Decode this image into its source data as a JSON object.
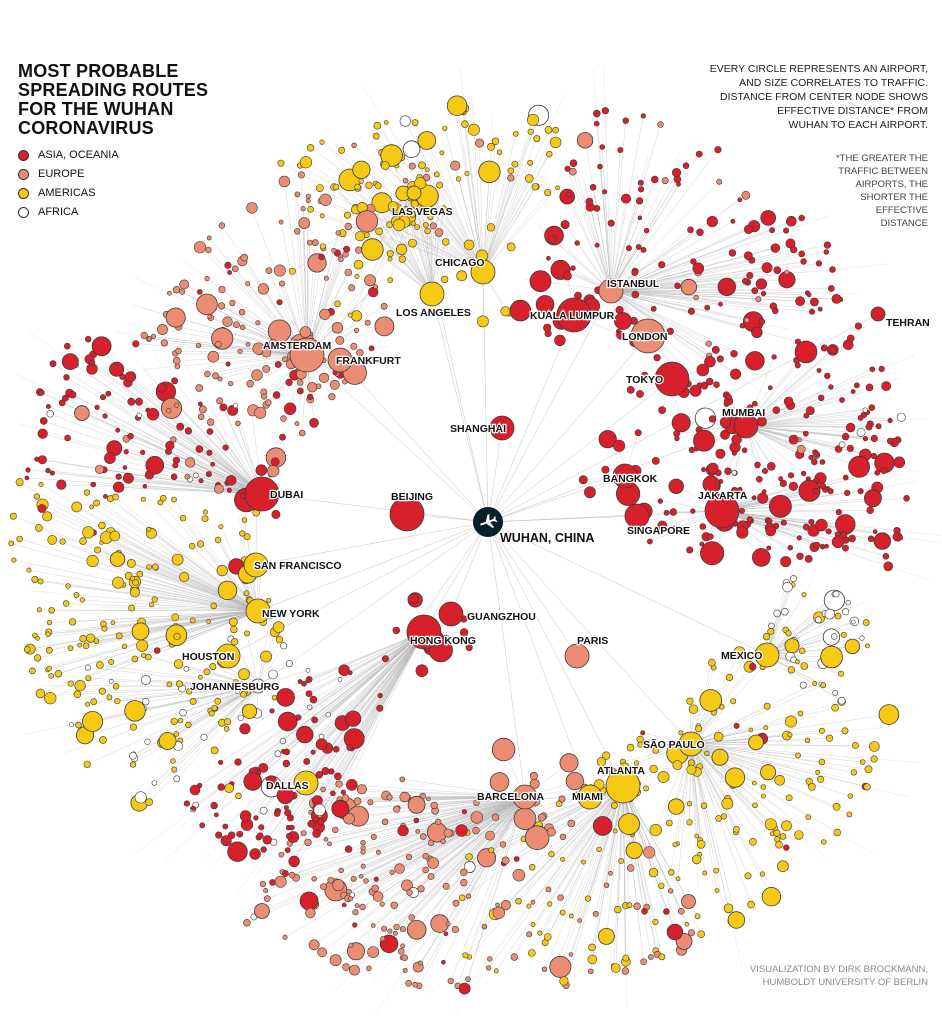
{
  "title": {
    "lines": [
      "MOST PROBABLE",
      "SPREADING ROUTES",
      "FOR THE WUHAN",
      "CORONAVIRUS"
    ]
  },
  "legend": [
    {
      "label": "ASIA, OCEANIA",
      "color": "#d7202b"
    },
    {
      "label": "EUROPE",
      "color": "#ec8c72"
    },
    {
      "label": "AMERICAS",
      "color": "#f6c915"
    },
    {
      "label": "AFRICA",
      "color": "#ffffff"
    }
  ],
  "description": {
    "lines": [
      "EVERY CIRCLE REPRESENTS AN AIRPORT,",
      "AND SIZE CORRELATES TO TRAFFIC.",
      "DISTANCE FROM CENTER NODE SHOWS",
      "EFFECTIVE DISTANCE* FROM",
      "WUHAN TO EACH AIRPORT."
    ]
  },
  "footnote": {
    "lines": [
      "*THE GREATER THE",
      "TRAFFIC BETWEEN",
      "AIRPORTS, THE",
      "SHORTER THE",
      "EFFECTIVE",
      "DISTANCE"
    ]
  },
  "credit": {
    "lines": [
      "VISUALIZATION BY DIRK BROCKMANN,",
      "HUMBOLDT UNIVERSITY OF BERLIN"
    ]
  },
  "center": {
    "label": "WUHAN, CHINA",
    "icon": "airplane-icon"
  },
  "hubs": [
    {
      "label": "SHANGHAI",
      "region": "asia",
      "size": 3
    },
    {
      "label": "BEIJING",
      "region": "asia",
      "size": 4
    },
    {
      "label": "PARIS",
      "region": "europe",
      "size": 3
    },
    {
      "label": "GUANGZHOU",
      "region": "asia",
      "size": 3
    },
    {
      "label": "HONG KONG",
      "region": "asia",
      "size": 4
    },
    {
      "label": "CHICAGO",
      "region": "americas",
      "size": 3
    },
    {
      "label": "LOS ANGELES",
      "region": "americas",
      "size": 3
    },
    {
      "label": "LAS VEGAS",
      "region": "americas",
      "size": 2
    },
    {
      "label": "AMSTERDAM",
      "region": "europe",
      "size": 4
    },
    {
      "label": "FRANKFURT",
      "region": "europe",
      "size": 3
    },
    {
      "label": "DUBAI",
      "region": "asia",
      "size": 4
    },
    {
      "label": "SAN FRANCISCO",
      "region": "americas",
      "size": 3
    },
    {
      "label": "NEW YORK",
      "region": "americas",
      "size": 3
    },
    {
      "label": "HOUSTON",
      "region": "americas",
      "size": 3
    },
    {
      "label": "JOHANNESBURG",
      "region": "africa",
      "size": 2
    },
    {
      "label": "DALLAS",
      "region": "americas",
      "size": 3
    },
    {
      "label": "BARCELONA",
      "region": "europe",
      "size": 3
    },
    {
      "label": "MIAMI",
      "region": "americas",
      "size": 3
    },
    {
      "label": "ATLANTA",
      "region": "americas",
      "size": 4
    },
    {
      "label": "SÃO PAULO",
      "region": "americas",
      "size": 3
    },
    {
      "label": "MEXICO",
      "region": "americas",
      "size": 3
    },
    {
      "label": "JAKARTA",
      "region": "asia",
      "size": 4
    },
    {
      "label": "SINGAPORE",
      "region": "asia",
      "size": 3
    },
    {
      "label": "BANGKOK",
      "region": "asia",
      "size": 3
    },
    {
      "label": "MUMBAI",
      "region": "asia",
      "size": 3
    },
    {
      "label": "TEHRAN",
      "region": "asia",
      "size": 2
    },
    {
      "label": "TOKYO",
      "region": "asia",
      "size": 4
    },
    {
      "label": "LONDON",
      "region": "europe",
      "size": 4
    },
    {
      "label": "ISTANBUL",
      "region": "europe",
      "size": 3
    },
    {
      "label": "KUALA LUMPUR",
      "region": "asia",
      "size": 4
    }
  ],
  "colors": {
    "asia": "#d7202b",
    "europe": "#ec8c72",
    "americas": "#f6c915",
    "africa": "#ffffff",
    "edge": "#b4b4b4",
    "stroke": "#3a3a3a"
  }
}
